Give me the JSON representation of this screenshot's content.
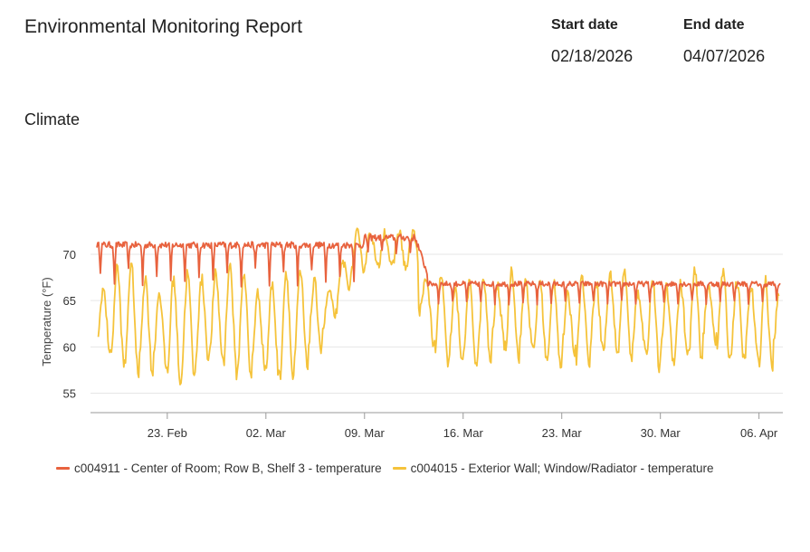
{
  "header": {
    "title": "Environmental Monitoring Report",
    "start_label": "Start date",
    "start_value": "02/18/2026",
    "end_label": "End date",
    "end_value": "04/07/2026"
  },
  "section": {
    "title": "Climate"
  },
  "colors": {
    "series1": "#e8623e",
    "series2": "#f5c33b",
    "grid": "#e6e6e6",
    "axis": "#9a9a9a"
  },
  "chart_data": {
    "type": "line",
    "title": "",
    "xlabel": "",
    "ylabel": "Temperature (°F)",
    "yticks": [
      55,
      60,
      65,
      70
    ],
    "xticks": [
      "23. Feb",
      "02. Mar",
      "09. Mar",
      "16. Mar",
      "23. Mar",
      "30. Mar",
      "06. Apr"
    ],
    "xlim": [
      "2026-02-18",
      "2026-04-07"
    ],
    "ylim": [
      53,
      74
    ],
    "grid": true,
    "legend_position": "bottom",
    "series": [
      {
        "name": "c004911 - Center of Room; Row B, Shelf 3 - temperature",
        "color": "#e8623e",
        "profile": {
          "phase1": {
            "from": "2026-02-18",
            "to": "2026-03-09",
            "base": 71.0,
            "night_drop": 4.5
          },
          "phase2": {
            "from": "2026-03-09",
            "to": "2026-03-12",
            "base": 71.8,
            "night_drop": 1.5
          },
          "phase3": {
            "from": "2026-03-13",
            "to": "2026-04-07",
            "base": 66.8,
            "night_drop": 2.0
          }
        }
      },
      {
        "name": "c004015 - Exterior Wall; Window/Radiator - temperature",
        "color": "#f5c33b",
        "profile": {
          "phase1": {
            "from": "2026-02-18",
            "to": "2026-03-06",
            "mean": 62.5,
            "amplitude": 5.5,
            "min": 54.3
          },
          "phase2": {
            "from": "2026-03-06",
            "to": "2026-03-12",
            "mean": 70.5,
            "amplitude": 2.0,
            "max": 72.8
          },
          "phase3": {
            "from": "2026-03-13",
            "to": "2026-04-07",
            "mean": 63.0,
            "amplitude": 4.0,
            "min": 57.2
          }
        }
      }
    ]
  }
}
